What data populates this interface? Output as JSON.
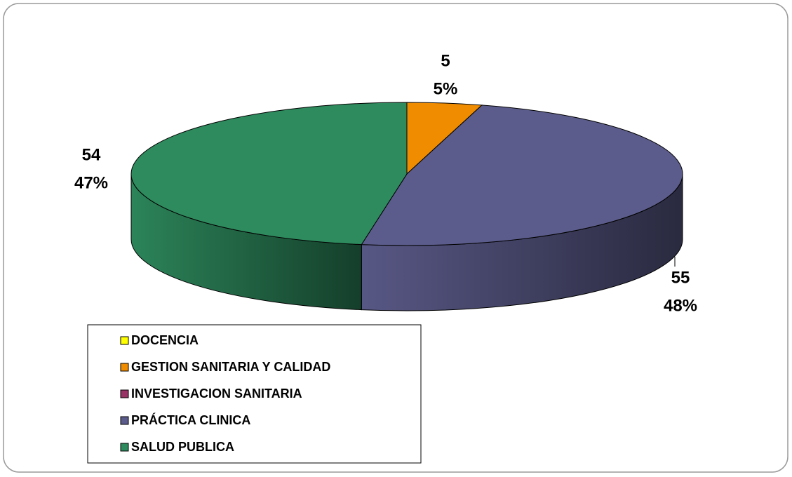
{
  "chart_data": {
    "type": "pie3d",
    "categories": [
      "DOCENCIA",
      "GESTION SANITARIA Y CALIDAD",
      "INVESTIGACION SANITARIA",
      "PRÁCTICA CLINICA",
      "SALUD PUBLICA"
    ],
    "values": [
      0,
      5,
      0,
      55,
      54
    ],
    "percent_labels": [
      null,
      "5%",
      null,
      "48%",
      "47%"
    ],
    "colors": [
      "#ffff00",
      "#f08c00",
      "#993366",
      "#5c5c8c",
      "#2e8b5e"
    ],
    "legend": "bottom-left"
  }
}
